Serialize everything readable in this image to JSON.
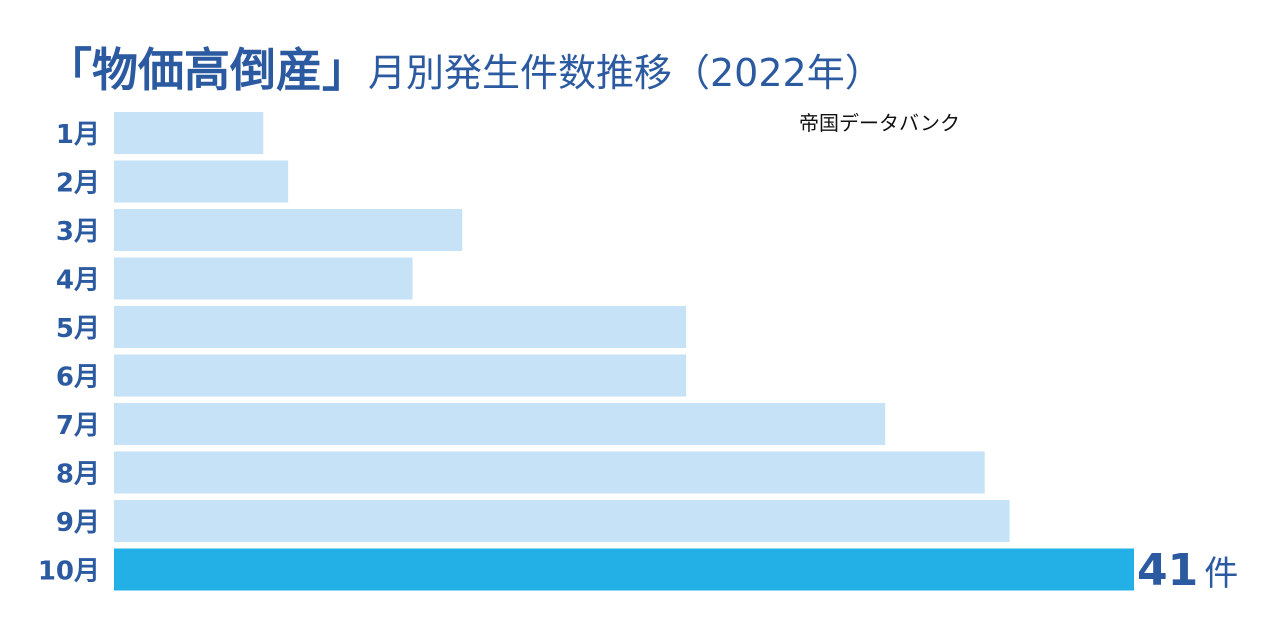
{
  "chart_data": {
    "type": "bar",
    "orientation": "horizontal",
    "title_emphasis": "「物価高倒産」",
    "title_rest": "月別発生件数推移（2022年）",
    "source": "帝国データバンク",
    "categories": [
      "1月",
      "2月",
      "3月",
      "4月",
      "5月",
      "6月",
      "7月",
      "8月",
      "9月",
      "10月"
    ],
    "values": [
      6,
      7,
      14,
      12,
      23,
      23,
      31,
      35,
      36,
      41
    ],
    "highlight_index": 9,
    "value_label": {
      "number": "41",
      "unit": "件"
    },
    "xlim": [
      0,
      41
    ],
    "grid": false,
    "legend": "none",
    "colors": {
      "bar": "#c5e2f6",
      "highlight": "#22b0e6",
      "text": "#2c5aa0"
    }
  }
}
